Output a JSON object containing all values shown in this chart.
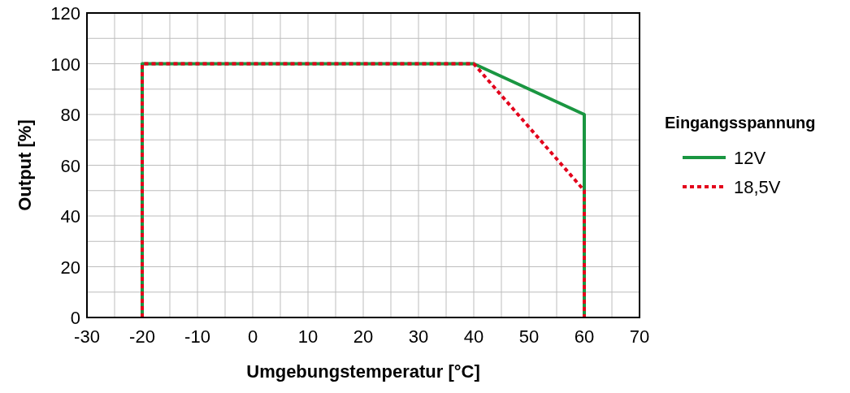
{
  "chart_data": {
    "type": "line",
    "xlabel": "Umgebungstemperatur  [°C]",
    "ylabel": "Output [%]",
    "legend_title": "Eingangsspannung",
    "legend": "right",
    "grid": true,
    "xlim": [
      -30,
      70
    ],
    "xticks": [
      -30,
      {
        "value": -25,
        "label": null
      },
      -20,
      {
        "value": -15,
        "label": null
      },
      -10,
      {
        "value": -5,
        "label": null
      },
      0,
      {
        "value": 5,
        "label": null
      },
      10,
      {
        "value": 15,
        "label": null
      },
      20,
      {
        "value": 25,
        "label": null
      },
      30,
      {
        "value": 35,
        "label": null
      },
      40,
      {
        "value": 45,
        "label": null
      },
      50,
      {
        "value": 55,
        "label": null
      },
      60,
      {
        "value": 65,
        "label": null
      },
      70
    ],
    "ylim": [
      0,
      120
    ],
    "yticks": [
      0,
      {
        "value": 10,
        "label": null
      },
      20,
      {
        "value": 30,
        "label": null
      },
      40,
      {
        "value": 50,
        "label": null
      },
      60,
      {
        "value": 70,
        "label": null
      },
      80,
      {
        "value": 90,
        "label": null
      },
      100,
      {
        "value": 110,
        "label": null
      },
      120
    ],
    "series": [
      {
        "name": "12V",
        "color": "#1a9641",
        "line_style": "solid",
        "x": [
          -20,
          -20,
          40,
          60,
          60
        ],
        "values": [
          0,
          100,
          100,
          80,
          0
        ]
      },
      {
        "name": "18,5V",
        "color": "#e3001b",
        "line_style": "dotted",
        "x": [
          -20,
          -20,
          40,
          60,
          60
        ],
        "values": [
          0,
          100,
          100,
          50,
          0
        ]
      }
    ]
  }
}
